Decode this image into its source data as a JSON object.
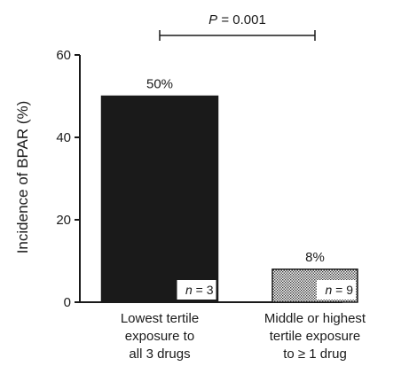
{
  "chart_data": {
    "type": "bar",
    "title": "",
    "ylabel": "Incidence of BPAR (%)",
    "ylim": [
      0,
      60
    ],
    "yticks": [
      0,
      20,
      40,
      60
    ],
    "grid": false,
    "categories": [
      [
        "Lowest tertile",
        "exposure to",
        "all 3 drugs"
      ],
      [
        "Middle or highest",
        "tertile exposure",
        "to ≥ 1 drug"
      ]
    ],
    "values": [
      50,
      8
    ],
    "data_labels": [
      "50%",
      "8%"
    ],
    "n_labels": [
      {
        "prefix": "n",
        "suffix": " = 3"
      },
      {
        "prefix": "n",
        "suffix": " = 9"
      }
    ],
    "bar_fills": [
      "solid-dark",
      "dotted"
    ],
    "colors": {
      "dark_bar": "#1a1a1a",
      "dot": "#333333",
      "text": "#1a1a1a"
    },
    "significance": {
      "prefix": "P",
      "suffix": " = 0.001",
      "between": [
        0,
        1
      ]
    }
  }
}
